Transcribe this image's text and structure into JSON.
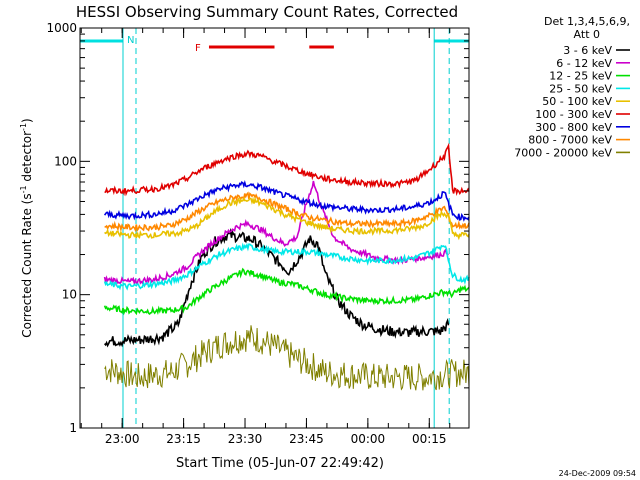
{
  "chart_data": {
    "type": "line",
    "title": "HESSI Observing Summary Count Rates, Corrected",
    "xlabel": "Start Time (05-Jun-07 22:49:42)",
    "ylabel_main": "Corrected Count Rate (s",
    "ylabel_sup1": "-1",
    "ylabel_mid": " detector",
    "ylabel_sup2": "-1",
    "ylabel_end": ")",
    "yscale": "log",
    "ylim": [
      1,
      1000
    ],
    "xlim_minutes": [
      0,
      95
    ],
    "x_ticks": [
      {
        "m": 10.3,
        "label": "23:00"
      },
      {
        "m": 25.3,
        "label": "23:15"
      },
      {
        "m": 40.3,
        "label": "23:30"
      },
      {
        "m": 55.3,
        "label": "23:45"
      },
      {
        "m": 70.3,
        "label": "00:00"
      },
      {
        "m": 85.3,
        "label": "00:15"
      }
    ],
    "y_ticks": [
      {
        "v": 1,
        "label": "1"
      },
      {
        "v": 10,
        "label": "10"
      },
      {
        "v": 100,
        "label": "100"
      },
      {
        "v": 1000,
        "label": "1000"
      }
    ],
    "legend_title_1": "Det 1,3,4,5,6,9,",
    "legend_title_2": "Att 0",
    "annotation_n": "N",
    "annotation_f": "F",
    "night_intervals": [
      [
        0,
        10.5
      ],
      [
        86.5,
        95
      ]
    ],
    "flare_intervals": [
      [
        31.5,
        47.5
      ],
      [
        56,
        62
      ]
    ],
    "footer_date": "24-Dec-2009 09:54",
    "series": [
      {
        "name": "3 - 6 keV",
        "color": "#000000",
        "start": 6,
        "end": 90,
        "points": [
          [
            6,
            4.5
          ],
          [
            10,
            4.5
          ],
          [
            15,
            4.6
          ],
          [
            20,
            4.8
          ],
          [
            24,
            6
          ],
          [
            27,
            12
          ],
          [
            30,
            20
          ],
          [
            33,
            25
          ],
          [
            36,
            28
          ],
          [
            39,
            27
          ],
          [
            42,
            26
          ],
          [
            45,
            22
          ],
          [
            48,
            18
          ],
          [
            51,
            15
          ],
          [
            54,
            20
          ],
          [
            56,
            26
          ],
          [
            58,
            24
          ],
          [
            60,
            14
          ],
          [
            63,
            9
          ],
          [
            66,
            7
          ],
          [
            69,
            6
          ],
          [
            72,
            5.6
          ],
          [
            76,
            5.3
          ],
          [
            80,
            5.2
          ],
          [
            84,
            5.3
          ],
          [
            88,
            5.3
          ],
          [
            90,
            6
          ]
        ]
      },
      {
        "name": "6 - 12 keV",
        "color": "#cc00cc",
        "start": 6,
        "end": 90,
        "points": [
          [
            6,
            13
          ],
          [
            12,
            12.5
          ],
          [
            18,
            13
          ],
          [
            22,
            14
          ],
          [
            26,
            16
          ],
          [
            29,
            20
          ],
          [
            32,
            24
          ],
          [
            35,
            28
          ],
          [
            38,
            32
          ],
          [
            41,
            34
          ],
          [
            44,
            31
          ],
          [
            47,
            27
          ],
          [
            50,
            24
          ],
          [
            53,
            27
          ],
          [
            55,
            45
          ],
          [
            57,
            70
          ],
          [
            59,
            45
          ],
          [
            62,
            27
          ],
          [
            66,
            22
          ],
          [
            72,
            19
          ],
          [
            78,
            18
          ],
          [
            84,
            19
          ],
          [
            88,
            20
          ],
          [
            90,
            21
          ]
        ]
      },
      {
        "name": "12 - 25 keV",
        "color": "#00e000",
        "start": 6,
        "end": 95,
        "points": [
          [
            6,
            8
          ],
          [
            12,
            7.6
          ],
          [
            18,
            7.5
          ],
          [
            22,
            7.6
          ],
          [
            26,
            8
          ],
          [
            29,
            9.5
          ],
          [
            32,
            11
          ],
          [
            36,
            13
          ],
          [
            40,
            15
          ],
          [
            44,
            14
          ],
          [
            48,
            12.5
          ],
          [
            52,
            12
          ],
          [
            56,
            11
          ],
          [
            60,
            10
          ],
          [
            64,
            9.5
          ],
          [
            70,
            9
          ],
          [
            76,
            9
          ],
          [
            82,
            9.2
          ],
          [
            86,
            10
          ],
          [
            89,
            10.5
          ],
          [
            91,
            10
          ],
          [
            93,
            11
          ]
        ]
      },
      {
        "name": "25 - 50 keV",
        "color": "#00e8e8",
        "start": 6,
        "end": 95,
        "points": [
          [
            6,
            12
          ],
          [
            12,
            11.5
          ],
          [
            18,
            12
          ],
          [
            22,
            12.5
          ],
          [
            26,
            14
          ],
          [
            30,
            17
          ],
          [
            34,
            20
          ],
          [
            38,
            22
          ],
          [
            41,
            23
          ],
          [
            44,
            22
          ],
          [
            48,
            21
          ],
          [
            52,
            21
          ],
          [
            56,
            21
          ],
          [
            60,
            20
          ],
          [
            64,
            19
          ],
          [
            70,
            18
          ],
          [
            76,
            18
          ],
          [
            82,
            19
          ],
          [
            86,
            21
          ],
          [
            89,
            24
          ],
          [
            91,
            14
          ],
          [
            93,
            13
          ]
        ]
      },
      {
        "name": "50 - 100 keV",
        "color": "#e8c000",
        "start": 6,
        "end": 95,
        "points": [
          [
            6,
            29
          ],
          [
            12,
            28
          ],
          [
            18,
            28
          ],
          [
            24,
            29
          ],
          [
            28,
            32
          ],
          [
            32,
            40
          ],
          [
            36,
            48
          ],
          [
            40,
            51
          ],
          [
            43,
            50
          ],
          [
            46,
            46
          ],
          [
            50,
            40
          ],
          [
            54,
            36
          ],
          [
            58,
            33
          ],
          [
            62,
            31
          ],
          [
            68,
            30
          ],
          [
            74,
            30
          ],
          [
            80,
            31
          ],
          [
            84,
            33
          ],
          [
            88,
            40
          ],
          [
            90,
            40
          ],
          [
            91,
            28
          ],
          [
            93,
            28
          ]
        ]
      },
      {
        "name": "100 - 300 keV",
        "color": "#e00000",
        "start": 6,
        "end": 95,
        "points": [
          [
            6,
            60
          ],
          [
            12,
            60
          ],
          [
            18,
            62
          ],
          [
            22,
            65
          ],
          [
            26,
            74
          ],
          [
            30,
            88
          ],
          [
            34,
            100
          ],
          [
            38,
            110
          ],
          [
            41,
            114
          ],
          [
            44,
            110
          ],
          [
            48,
            98
          ],
          [
            52,
            88
          ],
          [
            56,
            80
          ],
          [
            60,
            74
          ],
          [
            66,
            70
          ],
          [
            72,
            68
          ],
          [
            78,
            68
          ],
          [
            82,
            72
          ],
          [
            86,
            90
          ],
          [
            89,
            110
          ],
          [
            90,
            125
          ],
          [
            91,
            60
          ],
          [
            93,
            60
          ]
        ]
      },
      {
        "name": "300 - 800 keV",
        "color": "#0000e0",
        "start": 6,
        "end": 95,
        "points": [
          [
            6,
            40
          ],
          [
            12,
            39
          ],
          [
            18,
            40
          ],
          [
            22,
            42
          ],
          [
            26,
            47
          ],
          [
            30,
            55
          ],
          [
            34,
            62
          ],
          [
            38,
            66
          ],
          [
            41,
            67
          ],
          [
            44,
            64
          ],
          [
            48,
            58
          ],
          [
            52,
            53
          ],
          [
            56,
            49
          ],
          [
            60,
            46
          ],
          [
            66,
            44
          ],
          [
            72,
            43
          ],
          [
            78,
            44
          ],
          [
            82,
            46
          ],
          [
            86,
            50
          ],
          [
            89,
            58
          ],
          [
            91,
            40
          ],
          [
            93,
            38
          ]
        ]
      },
      {
        "name": "800 - 7000 keV",
        "color": "#ff8800",
        "start": 6,
        "end": 95,
        "points": [
          [
            6,
            33
          ],
          [
            12,
            32
          ],
          [
            18,
            32
          ],
          [
            22,
            33
          ],
          [
            26,
            37
          ],
          [
            30,
            44
          ],
          [
            34,
            50
          ],
          [
            38,
            54
          ],
          [
            41,
            55
          ],
          [
            44,
            53
          ],
          [
            48,
            47
          ],
          [
            52,
            42
          ],
          [
            56,
            38
          ],
          [
            60,
            36
          ],
          [
            66,
            34
          ],
          [
            72,
            34
          ],
          [
            78,
            34
          ],
          [
            82,
            36
          ],
          [
            86,
            40
          ],
          [
            89,
            45
          ],
          [
            91,
            33
          ],
          [
            93,
            33
          ]
        ]
      },
      {
        "name": "7000 - 20000 keV",
        "color": "#808000",
        "start": 6,
        "end": 95,
        "points": [
          [
            6,
            2.8
          ],
          [
            10,
            2.6
          ],
          [
            14,
            2.4
          ],
          [
            18,
            2.5
          ],
          [
            22,
            2.6
          ],
          [
            26,
            3.0
          ],
          [
            30,
            3.6
          ],
          [
            34,
            4.2
          ],
          [
            38,
            4.6
          ],
          [
            41,
            4.8
          ],
          [
            44,
            4.6
          ],
          [
            48,
            4.0
          ],
          [
            52,
            3.4
          ],
          [
            56,
            3.0
          ],
          [
            60,
            2.6
          ],
          [
            66,
            2.5
          ],
          [
            72,
            2.4
          ],
          [
            78,
            2.4
          ],
          [
            84,
            2.4
          ],
          [
            88,
            2.5
          ],
          [
            93,
            2.6
          ]
        ]
      }
    ]
  }
}
